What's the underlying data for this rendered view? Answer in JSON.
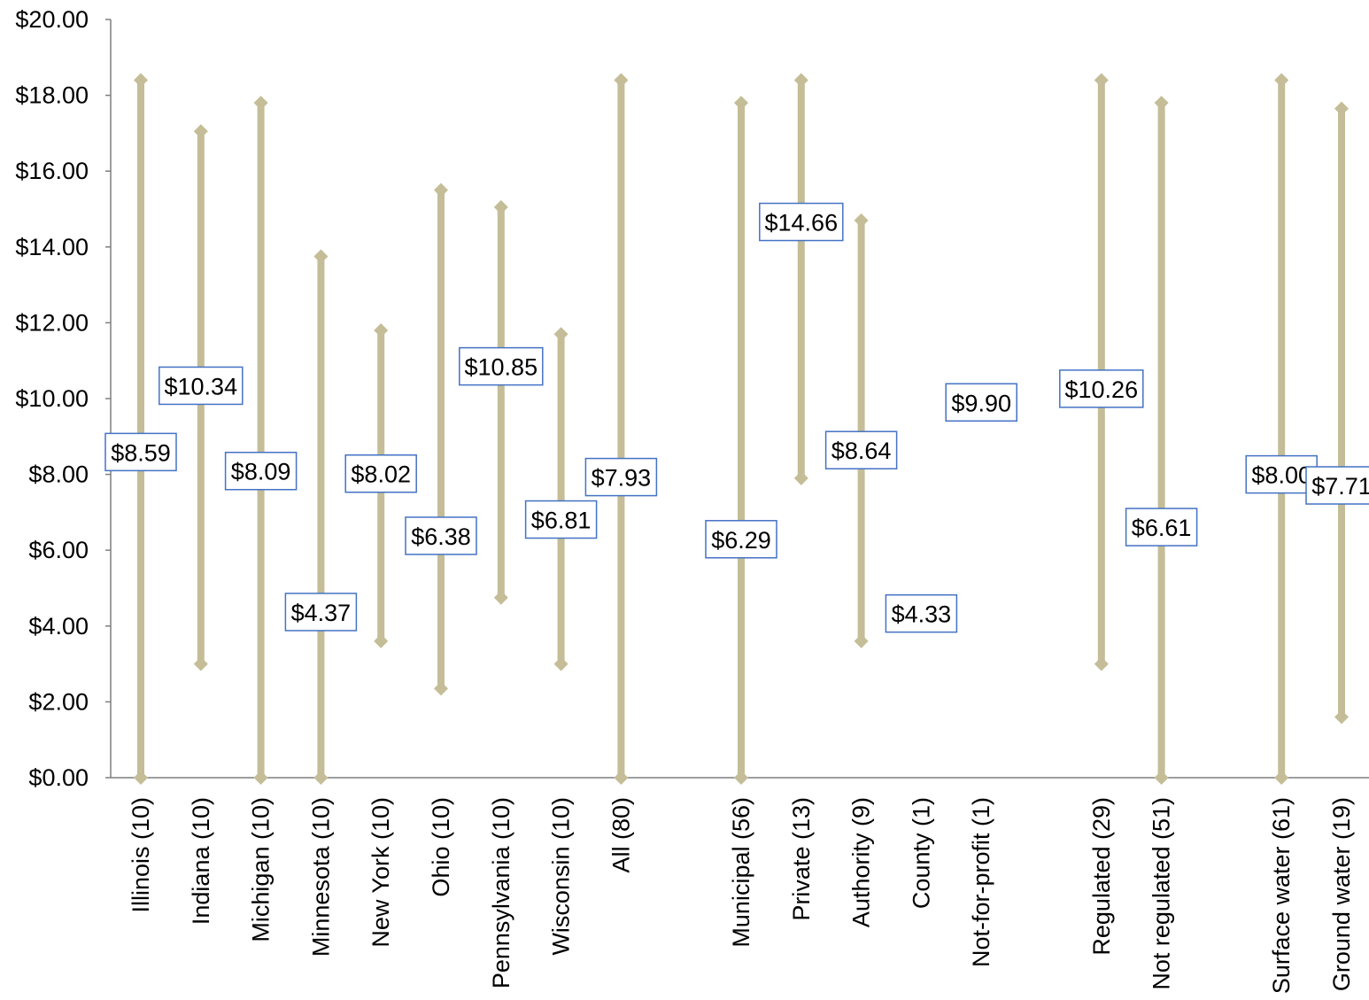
{
  "chart_data": {
    "type": "range",
    "title": "",
    "xlabel": "",
    "ylabel": "",
    "ylim": [
      0,
      20
    ],
    "yticks": [
      "$0.00",
      "$2.00",
      "$4.00",
      "$6.00",
      "$8.00",
      "$10.00",
      "$12.00",
      "$14.00",
      "$16.00",
      "$18.00",
      "$20.00"
    ],
    "grid": false,
    "line_color": "#c4bd97",
    "label_border_color": "#4472c4",
    "categories": [
      {
        "label": "Illinois (10)",
        "min": 0.0,
        "max": 18.4,
        "avg": 8.59,
        "avg_label": "$8.59"
      },
      {
        "label": "Indiana (10)",
        "min": 3.0,
        "max": 17.05,
        "avg": 10.34,
        "avg_label": "$10.34"
      },
      {
        "label": "Michigan (10)",
        "min": 0.0,
        "max": 17.8,
        "avg": 8.09,
        "avg_label": "$8.09"
      },
      {
        "label": "Minnesota (10)",
        "min": 0.0,
        "max": 13.75,
        "avg": 4.37,
        "avg_label": "$4.37"
      },
      {
        "label": "New York (10)",
        "min": 3.6,
        "max": 11.8,
        "avg": 8.02,
        "avg_label": "$8.02"
      },
      {
        "label": "Ohio (10)",
        "min": 2.35,
        "max": 15.5,
        "avg": 6.38,
        "avg_label": "$6.38"
      },
      {
        "label": "Pennsylvania (10)",
        "min": 4.75,
        "max": 15.05,
        "avg": 10.85,
        "avg_label": "$10.85"
      },
      {
        "label": "Wisconsin (10)",
        "min": 3.0,
        "max": 11.7,
        "avg": 6.81,
        "avg_label": "$6.81"
      },
      {
        "label": "All (80)",
        "min": 0.0,
        "max": 18.4,
        "avg": 7.93,
        "avg_label": "$7.93"
      },
      {
        "label": "",
        "min": null,
        "max": null,
        "avg": null,
        "avg_label": ""
      },
      {
        "label": "Municipal (56)",
        "min": 0.0,
        "max": 17.8,
        "avg": 6.29,
        "avg_label": "$6.29"
      },
      {
        "label": "Private (13)",
        "min": 7.9,
        "max": 18.4,
        "avg": 14.66,
        "avg_label": "$14.66"
      },
      {
        "label": "Authority (9)",
        "min": 3.6,
        "max": 14.7,
        "avg": 8.64,
        "avg_label": "$8.64"
      },
      {
        "label": "County (1)",
        "min": null,
        "max": null,
        "avg": 4.33,
        "avg_label": "$4.33"
      },
      {
        "label": "Not-for-profit (1)",
        "min": null,
        "max": null,
        "avg": 9.9,
        "avg_label": "$9.90"
      },
      {
        "label": "",
        "min": null,
        "max": null,
        "avg": null,
        "avg_label": ""
      },
      {
        "label": "Regulated (29)",
        "min": 3.0,
        "max": 18.4,
        "avg": 10.26,
        "avg_label": "$10.26"
      },
      {
        "label": "Not regulated (51)",
        "min": 0.0,
        "max": 17.8,
        "avg": 6.61,
        "avg_label": "$6.61"
      },
      {
        "label": "",
        "min": null,
        "max": null,
        "avg": null,
        "avg_label": ""
      },
      {
        "label": "Surface water (61)",
        "min": 0.0,
        "max": 18.4,
        "avg": 8.0,
        "avg_label": "$8.00"
      },
      {
        "label": "Ground water (19)",
        "min": 1.6,
        "max": 17.65,
        "avg": 7.71,
        "avg_label": "$7.71"
      }
    ]
  }
}
